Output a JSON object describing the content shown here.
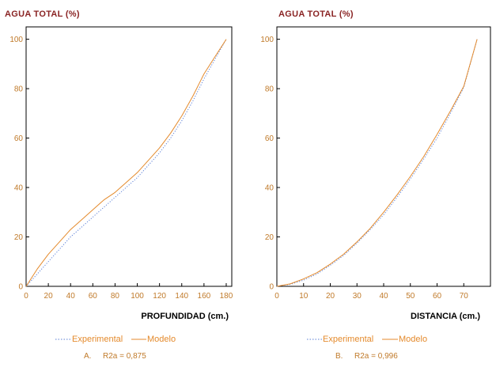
{
  "colors": {
    "axis": "#000000",
    "experimental": "#5b7fd6",
    "modelo": "#e48a2c",
    "ylabel_text": "#8a2424",
    "tick_text": "#c07a2a",
    "legend_text": "#e48a2c",
    "xlabel_text": "#000000"
  },
  "chart_data": [
    {
      "type": "line",
      "ylabel": "AGUA TOTAL (%)",
      "xlabel": "PROFUNDIDAD (cm.)",
      "xlim": [
        0,
        185
      ],
      "ylim": [
        0,
        105
      ],
      "xticks": [
        0,
        20,
        40,
        60,
        80,
        100,
        120,
        140,
        160,
        180
      ],
      "yticks": [
        0,
        20,
        40,
        60,
        80,
        100
      ],
      "grid": false,
      "legend_position": "bottom",
      "series": [
        {
          "name": "Experimental",
          "style": "dotted",
          "x": [
            0,
            10,
            20,
            30,
            40,
            50,
            60,
            70,
            80,
            90,
            100,
            110,
            120,
            130,
            140,
            150,
            160,
            170,
            180
          ],
          "y": [
            0,
            5,
            10,
            15,
            20,
            24,
            28,
            32,
            36,
            40,
            44,
            49,
            54,
            60,
            67,
            75,
            84,
            92,
            100
          ]
        },
        {
          "name": "Modelo",
          "style": "solid",
          "x": [
            0,
            10,
            20,
            30,
            40,
            50,
            60,
            70,
            80,
            90,
            100,
            110,
            120,
            130,
            140,
            150,
            160,
            170,
            180
          ],
          "y": [
            0,
            7,
            13,
            18,
            23,
            27,
            31,
            35,
            38,
            42,
            46,
            51,
            56,
            62,
            69,
            77,
            86,
            93,
            100
          ]
        }
      ],
      "caption": {
        "letter": "A.",
        "text": "R2a = 0,875"
      }
    },
    {
      "type": "line",
      "ylabel": "AGUA TOTAL (%)",
      "xlabel": "DISTANCIA (cm.)",
      "xlim": [
        0,
        80
      ],
      "ylim": [
        0,
        105
      ],
      "xticks": [
        0,
        10,
        20,
        30,
        40,
        50,
        60,
        70
      ],
      "yticks": [
        0,
        20,
        40,
        60,
        80,
        100
      ],
      "grid": false,
      "legend_position": "bottom",
      "series": [
        {
          "name": "Experimental",
          "style": "dotted",
          "x": [
            0,
            5,
            10,
            15,
            20,
            25,
            30,
            35,
            40,
            45,
            50,
            55,
            60,
            65,
            70,
            75
          ],
          "y": [
            0,
            0.8,
            2.5,
            5,
            8.5,
            12.5,
            17.5,
            23,
            29,
            36,
            43.5,
            51.5,
            60,
            70,
            80.5,
            100
          ]
        },
        {
          "name": "Modelo",
          "style": "solid",
          "x": [
            0,
            5,
            10,
            15,
            20,
            25,
            30,
            35,
            40,
            45,
            50,
            55,
            60,
            65,
            70,
            75
          ],
          "y": [
            0,
            1,
            3,
            5.5,
            9,
            13,
            18,
            23.5,
            30,
            37,
            44.5,
            52.5,
            61.5,
            71,
            81,
            100
          ]
        }
      ],
      "caption": {
        "letter": "B.",
        "text": "R2a = 0,996"
      }
    }
  ]
}
